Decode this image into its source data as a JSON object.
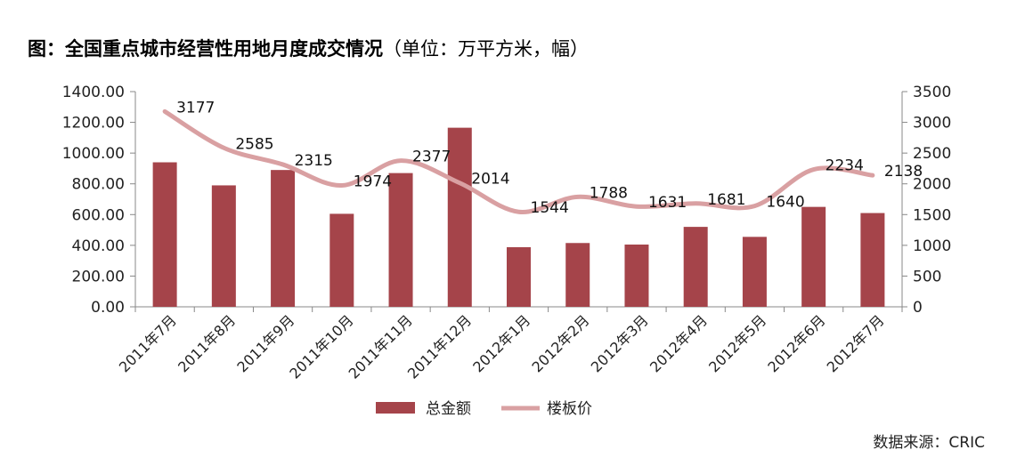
{
  "chart_data": {
    "type": "bar+line",
    "title": "图：全国重点城市经营性用地月度成交情况",
    "subtitle": "（单位：万平方米，幅）",
    "categories": [
      "2011年7月",
      "2011年8月",
      "2011年9月",
      "2011年10月",
      "2011年11月",
      "2011年12月",
      "2012年1月",
      "2012年2月",
      "2012年3月",
      "2012年4月",
      "2012年5月",
      "2012年6月",
      "2012年7月"
    ],
    "series": [
      {
        "name": "总金额",
        "type": "bar",
        "axis": "left",
        "color": "#a5444a",
        "values": [
          940,
          790,
          890,
          605,
          870,
          1165,
          388,
          415,
          405,
          520,
          455,
          650,
          610
        ]
      },
      {
        "name": "楼板价",
        "type": "line",
        "axis": "right",
        "color": "#d9a0a2",
        "values": [
          3177,
          2585,
          2315,
          1974,
          2377,
          2014,
          1544,
          1788,
          1631,
          1681,
          1640,
          2234,
          2138
        ]
      }
    ],
    "y_left": {
      "min": 0,
      "max": 1400,
      "ticks": [
        "0.00",
        "200.00",
        "400.00",
        "600.00",
        "800.00",
        "1000.00",
        "1200.00",
        "1400.00"
      ]
    },
    "y_right": {
      "min": 0,
      "max": 3500,
      "ticks": [
        "0",
        "500",
        "1000",
        "1500",
        "2000",
        "2500",
        "3000",
        "3500"
      ]
    },
    "data_labels": [
      "3177",
      "2585",
      "2315",
      "1974",
      "2377",
      "2014",
      "1544",
      "1788",
      "1631",
      "1681",
      "1640",
      "2234",
      "2138"
    ],
    "legend_position": "bottom",
    "grid": false,
    "source": "数据来源：CRIC"
  }
}
